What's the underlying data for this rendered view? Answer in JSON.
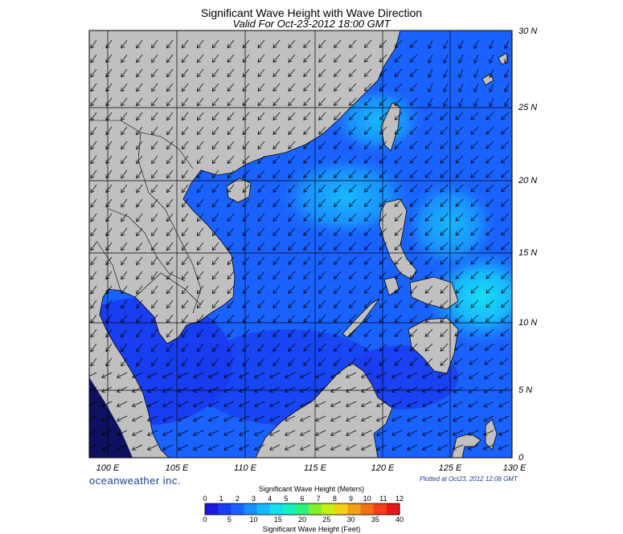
{
  "title": "Significant Wave Height with Wave Direction",
  "subtitle": "Valid For Oct-23-2012 18:00 GMT",
  "lon_labels": [
    "100 E",
    "105 E",
    "110 E",
    "115 E",
    "120 E",
    "125 E",
    "130 E"
  ],
  "lat_labels": [
    "30 N",
    "25 N",
    "20 N",
    "15 N",
    "10 N",
    "5 N",
    "0"
  ],
  "brand": "oceanweather inc.",
  "plotted": "Plotted at Oct23, 2012 12:08 GMT",
  "colorbar": {
    "title_top": "Significant Wave Height (Meters)",
    "title_bottom": "Significant Wave Height (Feet)",
    "meters": [
      "0",
      "1",
      "2",
      "3",
      "4",
      "5",
      "6",
      "7",
      "8",
      "9",
      "10",
      "11",
      "12"
    ],
    "feet": [
      "0",
      "5",
      "10",
      "15",
      "20",
      "25",
      "30",
      "35",
      "40"
    ],
    "colors": [
      "#1a1ad8",
      "#1a3bf0",
      "#1a62ff",
      "#1a8fff",
      "#18b8ff",
      "#18dcf0",
      "#18f0c0",
      "#30f080",
      "#80f030",
      "#c8f018",
      "#f0d018",
      "#f0a018",
      "#f07018",
      "#f04018",
      "#e81818"
    ]
  },
  "map": {
    "lon_range": [
      100,
      130
    ],
    "lat_range": [
      0,
      30
    ],
    "land_color": "#c0c0c0",
    "sea_colors": {
      "low": "#1a3bf0",
      "mid": "#1a62ff",
      "high": "#1a8fff",
      "peak": "#18b8ff"
    }
  }
}
